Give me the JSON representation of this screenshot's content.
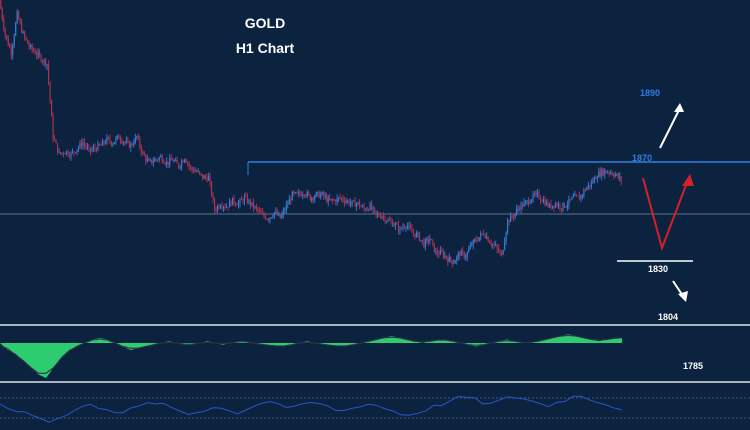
{
  "chart_data": {
    "type": "candlestick",
    "title": "GOLD",
    "subtitle": "H1 Chart",
    "xlabel": "",
    "ylabel": "",
    "ylim": [
      1795,
      1905
    ],
    "grid": false,
    "colors": {
      "background": "#0c2340",
      "bull": "#3d7ad6",
      "bear": "#b0324f",
      "resistance": "#2f7fe0",
      "support": "#ffffff",
      "target": "#ffffff",
      "scenario": "#d4202a",
      "oscillator_fill": "#2ecc71",
      "rsi": "#2a55c9"
    },
    "price_path": [
      1905,
      1893,
      1887,
      1900,
      1893,
      1889,
      1887,
      1885,
      1883,
      1858,
      1852,
      1853,
      1852,
      1854,
      1856,
      1853,
      1854,
      1855,
      1857,
      1856,
      1858,
      1856,
      1855,
      1858,
      1852,
      1849,
      1850,
      1851,
      1849,
      1850,
      1848,
      1851,
      1847,
      1846,
      1844,
      1844,
      1833,
      1835,
      1834,
      1836,
      1835,
      1837,
      1835,
      1833,
      1831,
      1830,
      1832,
      1830,
      1834,
      1838,
      1838,
      1839,
      1837,
      1838,
      1838,
      1836,
      1836,
      1837,
      1836,
      1835,
      1835,
      1833,
      1834,
      1831,
      1831,
      1829,
      1828,
      1826,
      1828,
      1825,
      1824,
      1821,
      1823,
      1818,
      1818,
      1816,
      1815,
      1818,
      1817,
      1821,
      1823,
      1825,
      1822,
      1820,
      1817,
      1829,
      1831,
      1834,
      1835,
      1837,
      1838,
      1836,
      1834,
      1835,
      1834,
      1835,
      1837,
      1837,
      1840,
      1842,
      1845,
      1846,
      1846,
      1845,
      1843
    ],
    "levels": [
      {
        "label": "1890",
        "value": 1890,
        "role": "upside target"
      },
      {
        "label": "1870",
        "value": 1870,
        "role": "resistance"
      },
      {
        "label": "1830",
        "value": 1830,
        "role": "support"
      },
      {
        "label": "1804",
        "value": 1804,
        "role": "downside target"
      },
      {
        "label": "1785",
        "value": 1785,
        "role": "downside target"
      }
    ],
    "oscillator": [
      0,
      -4,
      -6,
      -10,
      -14,
      -18,
      -20,
      -14,
      -8,
      -4,
      -2,
      0,
      2,
      3,
      2,
      0,
      -2,
      -4,
      -3,
      -2,
      -1,
      0,
      1,
      0,
      -1,
      -1,
      0,
      1,
      0,
      -1,
      0,
      1,
      1,
      0,
      -1,
      -1,
      -2,
      -2,
      -1,
      0,
      1,
      0,
      -1,
      -1,
      -2,
      -2,
      -1,
      0,
      1,
      2,
      3,
      4,
      3,
      2,
      1,
      0,
      1,
      2,
      2,
      1,
      0,
      -1,
      -2,
      -1,
      0,
      1,
      2,
      1,
      0,
      0,
      1,
      2,
      3,
      4,
      5,
      4,
      3,
      2,
      1,
      2,
      3,
      3
    ],
    "rsi": [
      50,
      44,
      40,
      38,
      36,
      30,
      26,
      28,
      34,
      40,
      46,
      48,
      46,
      44,
      40,
      38,
      42,
      46,
      50,
      52,
      48,
      44,
      40,
      36,
      38,
      42,
      46,
      44,
      40,
      38,
      42,
      48,
      52,
      54,
      50,
      46,
      44,
      48,
      52,
      50,
      46,
      42,
      40,
      44,
      48,
      50,
      48,
      44,
      40,
      36,
      34,
      38,
      42,
      46,
      50,
      54,
      58,
      60,
      56,
      52,
      50,
      54,
      58,
      60,
      58,
      54,
      50,
      48,
      52,
      56,
      60,
      62,
      58,
      54,
      50,
      46,
      44
    ]
  }
}
